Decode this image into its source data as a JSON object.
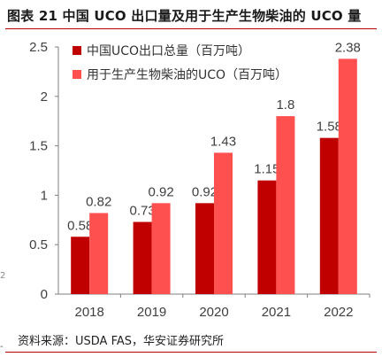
{
  "figure": {
    "title": "图表 21 中国 UCO 出口量及用于生产生物柴油的 UCO 量",
    "source": "资料来源：USDA FAS，华安证券研究所",
    "edge_mark": "2",
    "edge_tick": "-"
  },
  "chart_data": {
    "type": "bar",
    "title": "",
    "xlabel": "",
    "ylabel": "",
    "categories": [
      "2018",
      "2019",
      "2020",
      "2021",
      "2022"
    ],
    "series": [
      {
        "name": "中国UCO出口总量（百万吨）",
        "values": [
          0.58,
          0.73,
          0.92,
          1.15,
          1.58
        ],
        "color": "#c00000"
      },
      {
        "name": "用于生产生物柴油的UCO（百万吨）",
        "values": [
          0.82,
          0.92,
          1.43,
          1.8,
          2.38
        ],
        "color": "#ff5050"
      }
    ],
    "value_labels": [
      [
        "0.58",
        "0.73",
        "0.92",
        "1.15",
        "1.58"
      ],
      [
        "0.82",
        "0.92",
        "1.43",
        "1.8",
        "2.38"
      ]
    ],
    "ylim": [
      0,
      2.5
    ],
    "yticks": [
      "0",
      "0.5",
      "1",
      "1.5",
      "2",
      "2.5"
    ],
    "grid": false,
    "legend_position": "top-left"
  }
}
